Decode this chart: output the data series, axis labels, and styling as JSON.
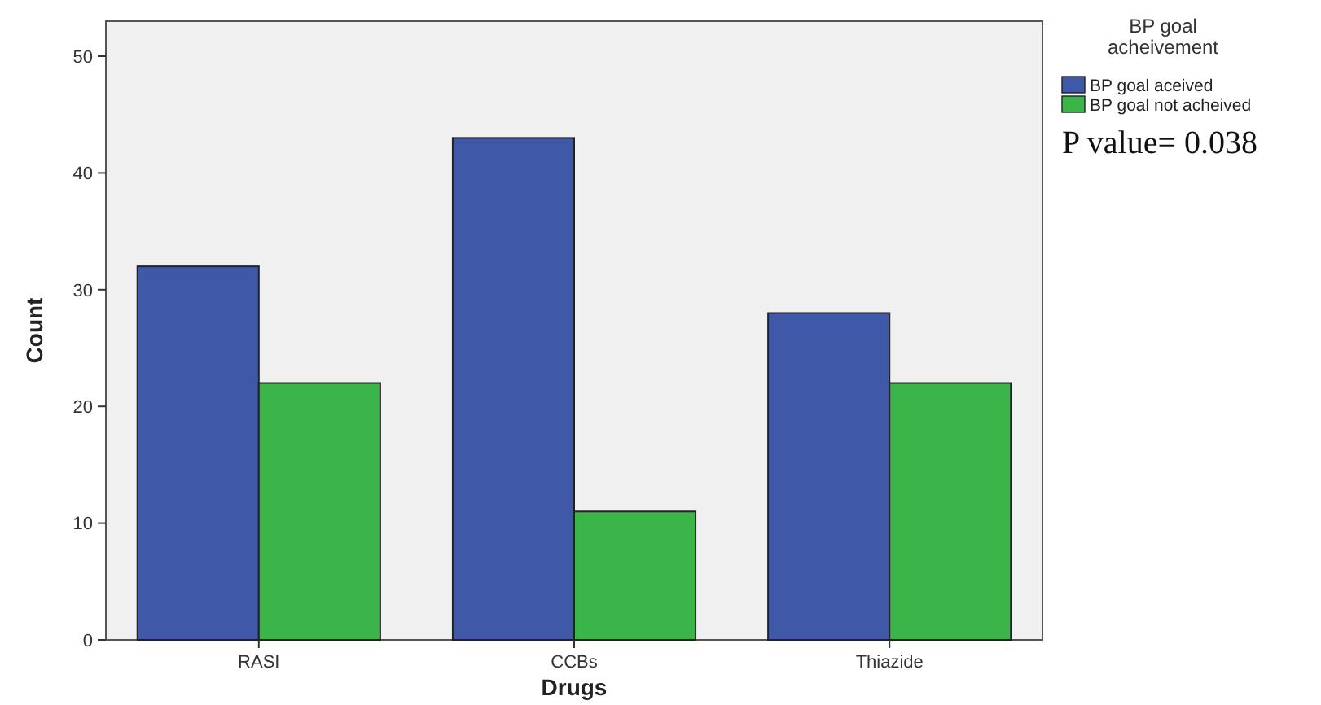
{
  "chart_data": {
    "type": "bar",
    "xlabel": "Drugs",
    "ylabel": "Count",
    "legend_title": "BP goal acheivement",
    "categories": [
      "RASI",
      "CCBs",
      "Thiazide"
    ],
    "series": [
      {
        "name": "BP goal aceived",
        "color": "#3f58a8",
        "values": [
          32,
          43,
          28
        ]
      },
      {
        "name": "BP goal not acheived",
        "color": "#3bb54a",
        "values": [
          22,
          11,
          22
        ]
      }
    ],
    "ylim": [
      0,
      53
    ],
    "yticks": [
      0,
      10,
      20,
      30,
      40,
      50
    ],
    "grid": false,
    "legend": "right",
    "annotations": [
      "P value= 0.038"
    ]
  }
}
